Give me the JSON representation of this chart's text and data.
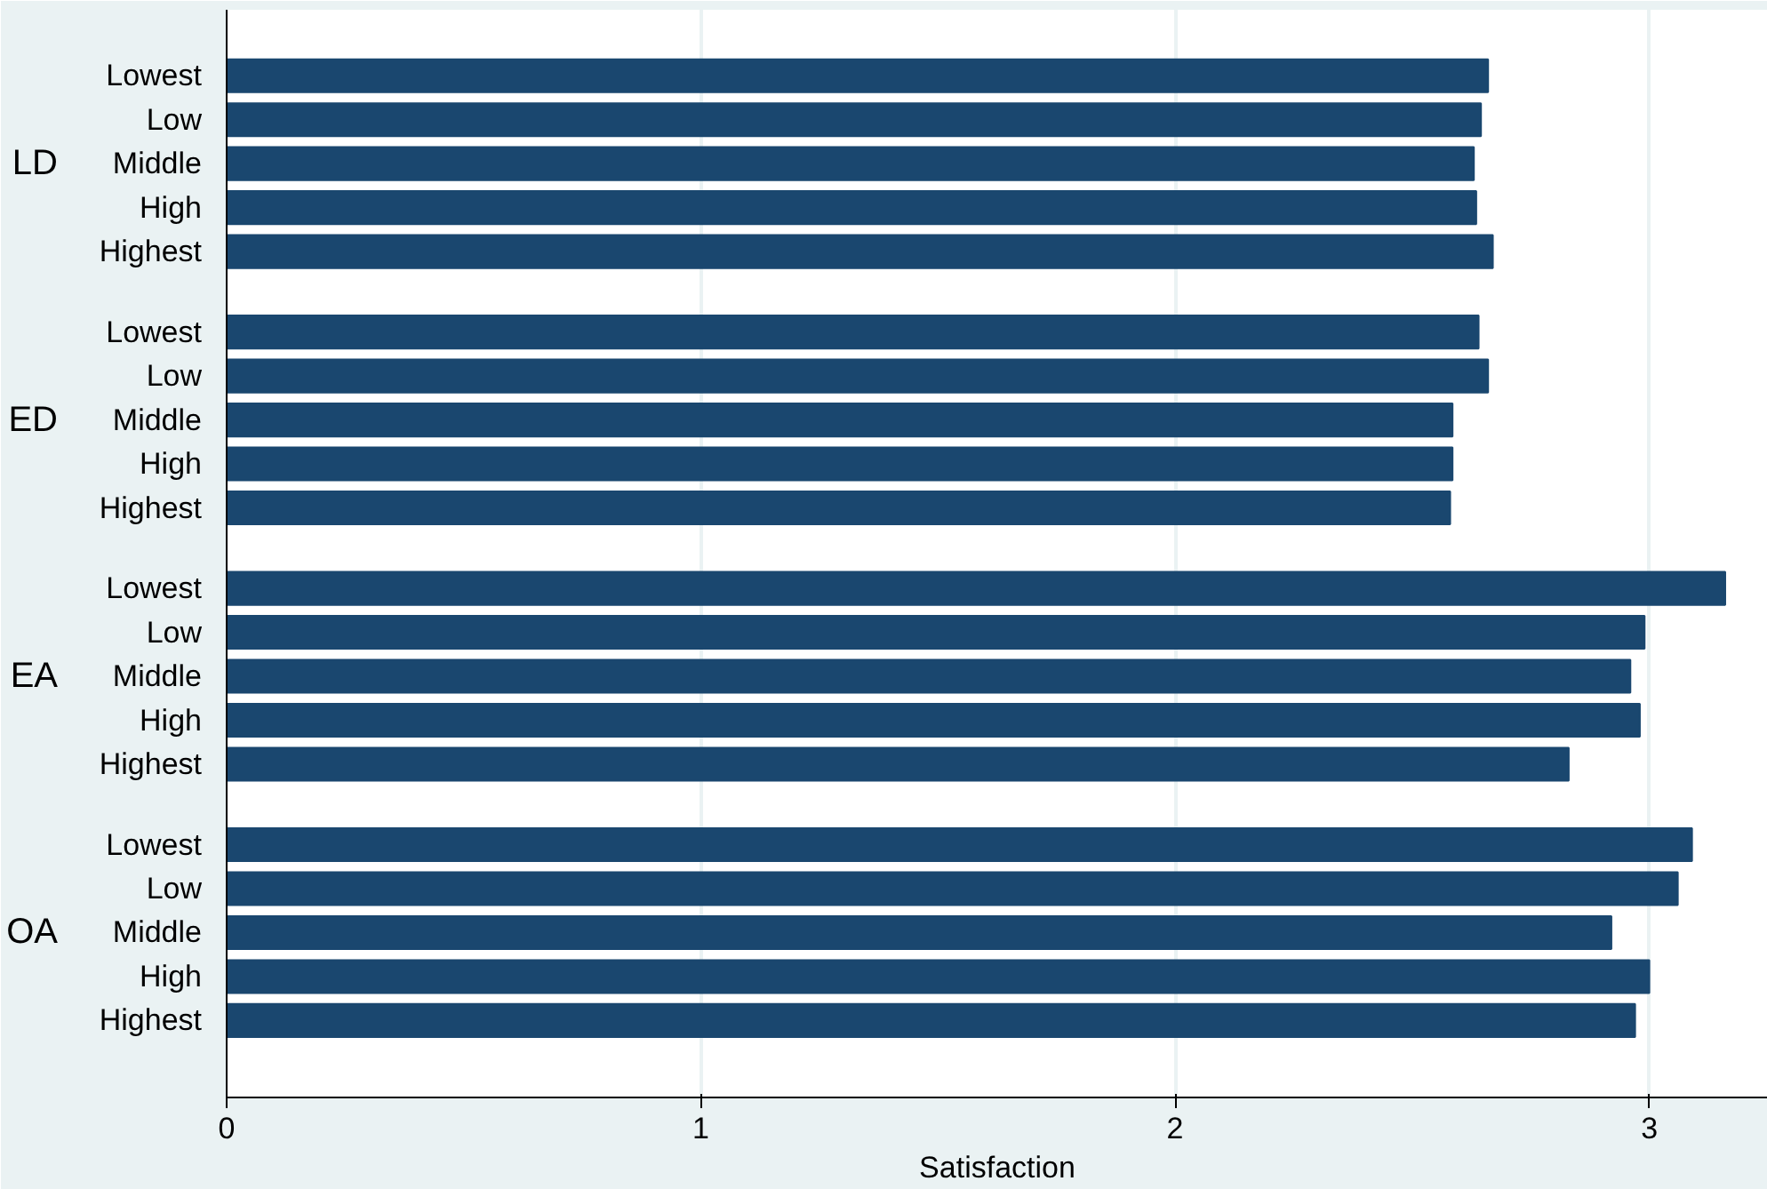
{
  "chart_data": {
    "type": "bar",
    "orientation": "horizontal",
    "xlabel": "Satisfaction",
    "categories": [
      "Lowest",
      "Low",
      "Middle",
      "High",
      "Highest",
      "Lowest",
      "Low",
      "Middle",
      "High",
      "Highest",
      "Lowest",
      "Low",
      "Middle",
      "High",
      "Highest",
      "Lowest",
      "Low",
      "Middle",
      "High",
      "Highest"
    ],
    "annotations": [
      "LD",
      "ED",
      "EA",
      "OA"
    ],
    "values": [
      2.66,
      2.645,
      2.63,
      2.635,
      2.67,
      2.64,
      2.66,
      2.585,
      2.585,
      2.58,
      3.16,
      2.99,
      2.96,
      2.98,
      2.83,
      3.09,
      3.06,
      2.92,
      3.0,
      2.97
    ],
    "color": "#1a476f",
    "xlim": [
      0,
      3.25
    ],
    "xticks": [
      0,
      1,
      2,
      3
    ],
    "grid": "x"
  }
}
